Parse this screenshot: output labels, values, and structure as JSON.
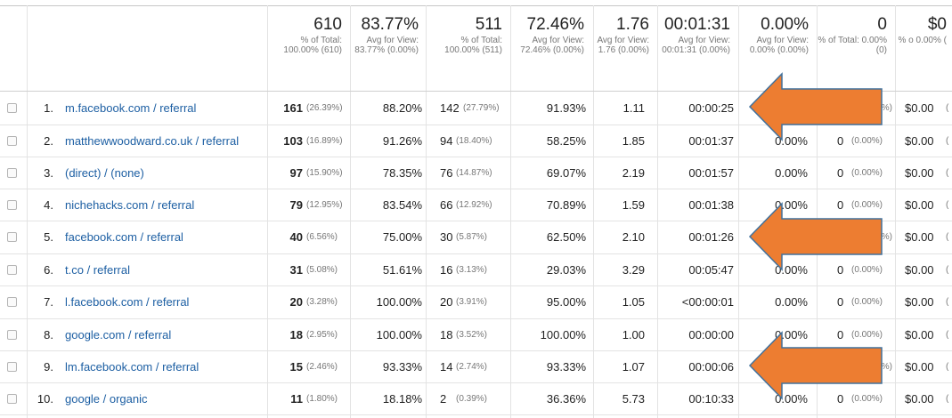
{
  "totals": [
    {
      "value": "610",
      "sub": "% of Total: 100.00% (610)"
    },
    {
      "value": "83.77%",
      "sub": "Avg for View: 83.77% (0.00%)"
    },
    {
      "value": "511",
      "sub": "% of Total: 100.00% (511)"
    },
    {
      "value": "72.46%",
      "sub": "Avg for View: 72.46% (0.00%)"
    },
    {
      "value": "1.76",
      "sub": "Avg for View: 1.76 (0.00%)"
    },
    {
      "value": "00:01:31",
      "sub": "Avg for View: 00:01:31 (0.00%)"
    },
    {
      "value": "0.00%",
      "sub": "Avg for View: 0.00% (0.00%)"
    },
    {
      "value": "0",
      "sub": "% of Total: 0.00% (0)"
    },
    {
      "value": "$0",
      "sub": "% o 0.00% ("
    }
  ],
  "rows": [
    {
      "idx": "1.",
      "source": "m.facebook.com / referral",
      "users": "161",
      "users_pct": "(26.39%)",
      "new_sessions": "88.20%",
      "new_users": "142",
      "new_users_pct": "(27.79%)",
      "bounce": "91.93%",
      "pages": "1.11",
      "duration": "00:00:25",
      "conv_rate": "",
      "goal": "",
      "goal_pct": "%)",
      "value": "$0.00",
      "value_pct": "("
    },
    {
      "idx": "2.",
      "source": "matthewwoodward.co.uk / referral",
      "users": "103",
      "users_pct": "(16.89%)",
      "new_sessions": "91.26%",
      "new_users": "94",
      "new_users_pct": "(18.40%)",
      "bounce": "58.25%",
      "pages": "1.85",
      "duration": "00:01:37",
      "conv_rate": "0.00%",
      "goal": "0",
      "goal_pct": "(0.00%)",
      "value": "$0.00",
      "value_pct": "("
    },
    {
      "idx": "3.",
      "source": "(direct) / (none)",
      "users": "97",
      "users_pct": "(15.90%)",
      "new_sessions": "78.35%",
      "new_users": "76",
      "new_users_pct": "(14.87%)",
      "bounce": "69.07%",
      "pages": "2.19",
      "duration": "00:01:57",
      "conv_rate": "0.00%",
      "goal": "0",
      "goal_pct": "(0.00%)",
      "value": "$0.00",
      "value_pct": "("
    },
    {
      "idx": "4.",
      "source": "nichehacks.com / referral",
      "users": "79",
      "users_pct": "(12.95%)",
      "new_sessions": "83.54%",
      "new_users": "66",
      "new_users_pct": "(12.92%)",
      "bounce": "70.89%",
      "pages": "1.59",
      "duration": "00:01:38",
      "conv_rate": "0.00%",
      "goal": "0",
      "goal_pct": "(0.00%)",
      "value": "$0.00",
      "value_pct": "("
    },
    {
      "idx": "5.",
      "source": "facebook.com / referral",
      "users": "40",
      "users_pct": "(6.56%)",
      "new_sessions": "75.00%",
      "new_users": "30",
      "new_users_pct": "(5.87%)",
      "bounce": "62.50%",
      "pages": "2.10",
      "duration": "00:01:26",
      "conv_rate": "",
      "goal": "",
      "goal_pct": "%)",
      "value": "$0.00",
      "value_pct": "("
    },
    {
      "idx": "6.",
      "source": "t.co / referral",
      "users": "31",
      "users_pct": "(5.08%)",
      "new_sessions": "51.61%",
      "new_users": "16",
      "new_users_pct": "(3.13%)",
      "bounce": "29.03%",
      "pages": "3.29",
      "duration": "00:05:47",
      "conv_rate": "0.00%",
      "goal": "0",
      "goal_pct": "(0.00%)",
      "value": "$0.00",
      "value_pct": "("
    },
    {
      "idx": "7.",
      "source": "l.facebook.com / referral",
      "users": "20",
      "users_pct": "(3.28%)",
      "new_sessions": "100.00%",
      "new_users": "20",
      "new_users_pct": "(3.91%)",
      "bounce": "95.00%",
      "pages": "1.05",
      "duration": "<00:00:01",
      "conv_rate": "0.00%",
      "goal": "0",
      "goal_pct": "(0.00%)",
      "value": "$0.00",
      "value_pct": "("
    },
    {
      "idx": "8.",
      "source": "google.com / referral",
      "users": "18",
      "users_pct": "(2.95%)",
      "new_sessions": "100.00%",
      "new_users": "18",
      "new_users_pct": "(3.52%)",
      "bounce": "100.00%",
      "pages": "1.00",
      "duration": "00:00:00",
      "conv_rate": "0.00%",
      "goal": "0",
      "goal_pct": "(0.00%)",
      "value": "$0.00",
      "value_pct": "("
    },
    {
      "idx": "9.",
      "source": "lm.facebook.com / referral",
      "users": "15",
      "users_pct": "(2.46%)",
      "new_sessions": "93.33%",
      "new_users": "14",
      "new_users_pct": "(2.74%)",
      "bounce": "93.33%",
      "pages": "1.07",
      "duration": "00:00:06",
      "conv_rate": "",
      "goal": "",
      "goal_pct": "%)",
      "value": "$0.00",
      "value_pct": "("
    },
    {
      "idx": "10.",
      "source": "google / organic",
      "users": "11",
      "users_pct": "(1.80%)",
      "new_sessions": "18.18%",
      "new_users": "2",
      "new_users_pct": "(0.39%)",
      "bounce": "36.36%",
      "pages": "5.73",
      "duration": "00:10:33",
      "conv_rate": "0.00%",
      "goal": "0",
      "goal_pct": "(0.00%)",
      "value": "$0.00",
      "value_pct": "("
    }
  ],
  "colors": {
    "link": "#1d5fa3",
    "arrow": "#ed7d31",
    "arrow_border": "#41719c"
  },
  "annotations": [
    {
      "icon": "orange-arrow-left-icon",
      "row": 1
    },
    {
      "icon": "orange-arrow-left-icon",
      "row": 5
    },
    {
      "icon": "orange-arrow-left-icon",
      "row": 9
    }
  ]
}
